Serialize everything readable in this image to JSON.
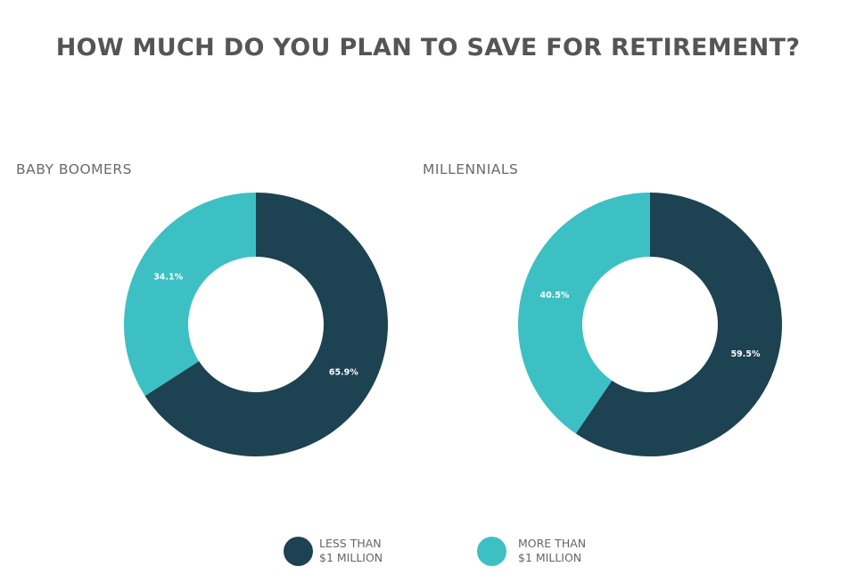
{
  "chart_data": {
    "type": "pie",
    "title": "HOW MUCH DO YOU PLAN TO SAVE FOR RETIREMENT?",
    "legend": [
      {
        "line1": "LESS THAN",
        "line2": "$1 MILLION",
        "color": "#1d4251"
      },
      {
        "line1": "MORE THAN",
        "line2": "$1 MILLION",
        "color": "#3cc0c3"
      }
    ],
    "legend_placement": "bottom-center",
    "charts": [
      {
        "title": "BABY BOOMERS",
        "slices": [
          {
            "value": 65.9,
            "label": "65.9%",
            "color": "#1d4251"
          },
          {
            "value": 34.1,
            "label": "34.1%",
            "color": "#3cc0c3"
          }
        ]
      },
      {
        "title": "MILLENNIALS",
        "slices": [
          {
            "value": 59.5,
            "label": "59.5%",
            "color": "#1d4251"
          },
          {
            "value": 40.5,
            "label": "40.5%",
            "color": "#3cc0c3"
          }
        ]
      }
    ]
  }
}
